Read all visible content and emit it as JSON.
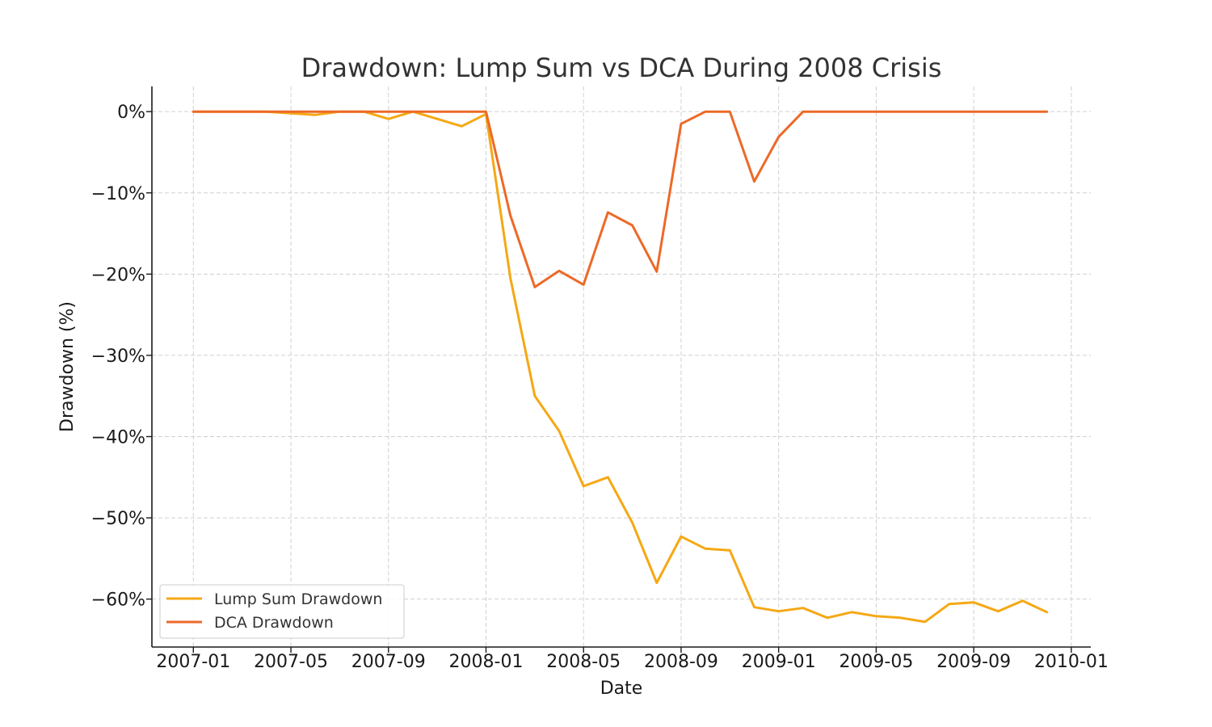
{
  "chart_data": {
    "type": "line",
    "title": "Drawdown: Lump Sum vs DCA During 2008 Crisis",
    "xlabel": "Date",
    "ylabel": "Drawdown (%)",
    "x_tick_labels": [
      "2007-01",
      "2007-05",
      "2007-09",
      "2008-01",
      "2008-05",
      "2008-09",
      "2009-01",
      "2009-05",
      "2009-09",
      "2010-01"
    ],
    "y_tick_labels": [
      "0%",
      "−10%",
      "−20%",
      "−30%",
      "−40%",
      "−50%",
      "−60%"
    ],
    "y_ticks": [
      0,
      -10,
      -20,
      -30,
      -40,
      -50,
      -60
    ],
    "ylim": [
      -65.9,
      3.1
    ],
    "xlim_months": [
      -1.7,
      36.8
    ],
    "x_months": [
      0,
      1,
      2,
      3,
      4,
      5,
      6,
      7,
      8,
      9,
      10,
      11,
      12,
      13,
      14,
      15,
      16,
      17,
      18,
      19,
      20,
      21,
      22,
      23,
      24,
      25,
      26,
      27,
      28,
      29,
      30,
      31,
      32,
      33,
      34,
      35
    ],
    "x_dates": [
      "2007-01",
      "2007-02",
      "2007-03",
      "2007-04",
      "2007-05",
      "2007-06",
      "2007-07",
      "2007-08",
      "2007-09",
      "2007-10",
      "2007-11",
      "2007-12",
      "2008-01",
      "2008-02",
      "2008-03",
      "2008-04",
      "2008-05",
      "2008-06",
      "2008-07",
      "2008-08",
      "2008-09",
      "2008-10",
      "2008-11",
      "2008-12",
      "2009-01",
      "2009-02",
      "2009-03",
      "2009-04",
      "2009-05",
      "2009-06",
      "2009-07",
      "2009-08",
      "2009-09",
      "2009-10",
      "2009-11",
      "2009-12"
    ],
    "grid": true,
    "legend_position": "lower-left",
    "series": [
      {
        "name": "Lump Sum Drawdown",
        "color": "#f5a814",
        "values": [
          0,
          0,
          0,
          0,
          -0.2,
          -0.4,
          0,
          0,
          -0.9,
          0,
          -0.9,
          -1.8,
          -0.3,
          -20.5,
          -35,
          -39.3,
          -46.1,
          -45,
          -50.6,
          -58,
          -52.3,
          -53.8,
          -54,
          -61,
          -61.5,
          -61.1,
          -62.3,
          -61.6,
          -62.1,
          -62.3,
          -62.8,
          -60.6,
          -60.4,
          -61.5,
          -60.2,
          -61.6
        ]
      },
      {
        "name": "DCA Drawdown",
        "color": "#ec6a28",
        "values": [
          0,
          0,
          0,
          0,
          0,
          0,
          0,
          0,
          0,
          0,
          0,
          0,
          0,
          -12.8,
          -21.6,
          -19.6,
          -21.3,
          -12.4,
          -14,
          -19.7,
          -1.5,
          0,
          0,
          -8.6,
          -3.1,
          0,
          0,
          0,
          0,
          0,
          0,
          0,
          0,
          0,
          0,
          0
        ]
      }
    ]
  }
}
